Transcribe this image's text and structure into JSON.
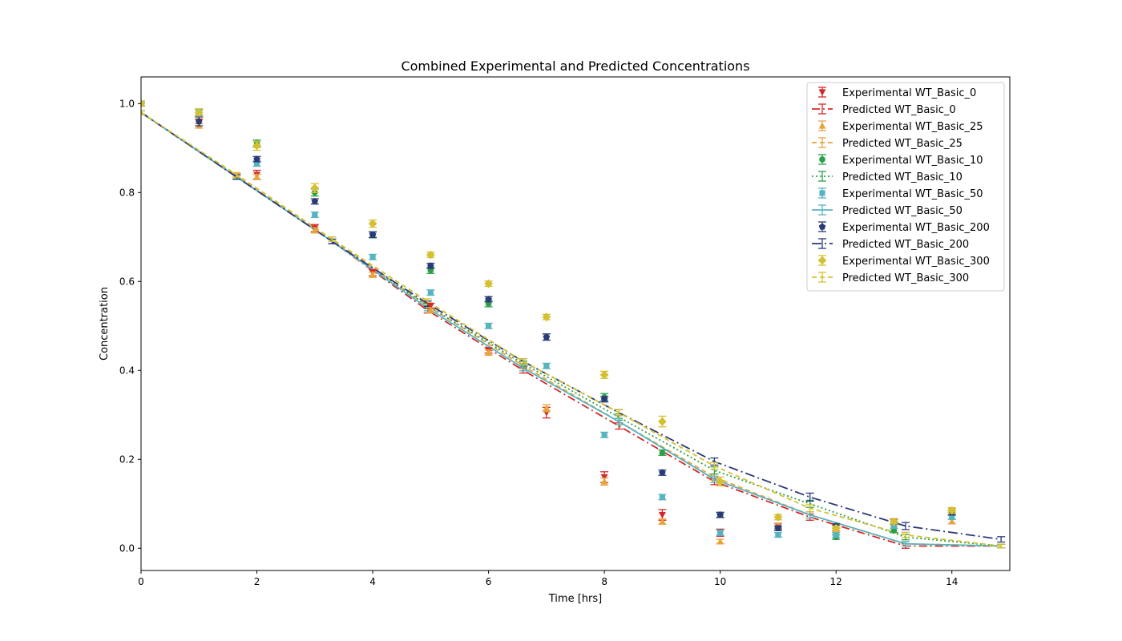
{
  "chart_data": {
    "type": "scatter",
    "title": "Combined Experimental and Predicted Concentrations",
    "xlabel": "Time [hrs]",
    "ylabel": "Concentration",
    "xlim": [
      0,
      15
    ],
    "ylim": [
      -0.05,
      1.06
    ],
    "xticks": [
      "0",
      "2",
      "4",
      "6",
      "8",
      "10",
      "12",
      "14"
    ],
    "yticks": [
      "0.0",
      "0.2",
      "0.4",
      "0.6",
      "0.8",
      "1.0"
    ],
    "legend_position": "upper right",
    "grid": false,
    "experimental_x": [
      0,
      1,
      2,
      3,
      4,
      5,
      6,
      7,
      8,
      9,
      10,
      11,
      12,
      13,
      14
    ],
    "predicted_x_all": [
      0,
      1.65,
      3.3,
      4.95,
      6.6,
      8.25,
      9.9,
      11.55,
      13.2,
      14.85
    ],
    "series": [
      {
        "name": "Experimental WT_Basic_0",
        "kind": "experimental",
        "color": "#d62728",
        "marker": "triangle-down",
        "y": [
          1.0,
          0.96,
          0.84,
          0.72,
          0.62,
          0.545,
          0.445,
          0.305,
          0.16,
          0.075,
          0.035,
          0.05,
          0.045,
          0.06,
          0.085
        ],
        "err": [
          0.005,
          0.005,
          0.01,
          0.008,
          0.007,
          0.006,
          0.006,
          0.012,
          0.012,
          0.012,
          0.008,
          0.006,
          0.006,
          0.006,
          0.006
        ]
      },
      {
        "name": "Predicted WT_Basic_0",
        "kind": "predicted",
        "color": "#d62728",
        "dash": "10,4,2,4",
        "x": [
          0,
          1.65,
          3.3,
          4.95,
          6.6,
          8.25,
          9.9,
          11.55,
          13.2,
          14.85
        ],
        "y": [
          0.98,
          0.835,
          0.69,
          0.535,
          0.4,
          0.275,
          0.15,
          0.07,
          0.005,
          0.005
        ],
        "err": [
          0.004,
          0.005,
          0.005,
          0.006,
          0.006,
          0.007,
          0.007,
          0.007,
          0.005,
          0.004
        ]
      },
      {
        "name": "Experimental WT_Basic_25",
        "kind": "experimental",
        "color": "#e8a33d",
        "marker": "triangle-up",
        "y": [
          1.0,
          0.95,
          0.835,
          0.715,
          0.615,
          0.535,
          0.44,
          0.315,
          0.15,
          0.06,
          0.015,
          0.05,
          0.04,
          0.055,
          0.06
        ],
        "err": [
          0.005,
          0.005,
          0.006,
          0.006,
          0.006,
          0.006,
          0.006,
          0.008,
          0.008,
          0.006,
          0.005,
          0.005,
          0.005,
          0.005,
          0.005
        ]
      },
      {
        "name": "Predicted WT_Basic_25",
        "kind": "predicted",
        "color": "#e8a33d",
        "dash": "6,4",
        "x": [
          0,
          1.65,
          3.3,
          4.95,
          6.6,
          8.25,
          9.9,
          11.55,
          13.2,
          14.85
        ],
        "y": [
          0.98,
          0.838,
          0.695,
          0.545,
          0.41,
          0.285,
          0.16,
          0.075,
          0.01,
          0.005
        ],
        "err": [
          0.004,
          0.005,
          0.005,
          0.006,
          0.006,
          0.007,
          0.007,
          0.007,
          0.005,
          0.004
        ]
      },
      {
        "name": "Experimental WT_Basic_10",
        "kind": "experimental",
        "color": "#2ca048",
        "marker": "circle",
        "y": [
          1.0,
          0.98,
          0.91,
          0.8,
          0.705,
          0.625,
          0.55,
          0.475,
          0.34,
          0.215,
          0.075,
          0.045,
          0.025,
          0.04,
          0.08
        ],
        "err": [
          0.005,
          0.008,
          0.008,
          0.008,
          0.007,
          0.007,
          0.007,
          0.007,
          0.008,
          0.006,
          0.005,
          0.005,
          0.005,
          0.005,
          0.006
        ]
      },
      {
        "name": "Predicted WT_Basic_10",
        "kind": "predicted",
        "color": "#2ca048",
        "dash": "2,3",
        "x": [
          0,
          1.65,
          3.3,
          4.95,
          6.6,
          8.25,
          9.9,
          11.55,
          13.2,
          14.85
        ],
        "y": [
          0.98,
          0.835,
          0.69,
          0.545,
          0.415,
          0.295,
          0.175,
          0.1,
          0.025,
          0.005
        ],
        "err": [
          0.004,
          0.005,
          0.005,
          0.006,
          0.006,
          0.007,
          0.008,
          0.008,
          0.006,
          0.004
        ]
      },
      {
        "name": "Experimental WT_Basic_50",
        "kind": "experimental",
        "color": "#56b4c0",
        "marker": "square",
        "y": [
          1.0,
          0.98,
          0.865,
          0.75,
          0.655,
          0.575,
          0.5,
          0.41,
          0.255,
          0.115,
          0.035,
          0.03,
          0.03,
          0.05,
          0.07
        ],
        "err": [
          0.005,
          0.006,
          0.006,
          0.006,
          0.006,
          0.006,
          0.006,
          0.006,
          0.006,
          0.006,
          0.006,
          0.005,
          0.005,
          0.005,
          0.005
        ]
      },
      {
        "name": "Predicted WT_Basic_50",
        "kind": "predicted",
        "color": "#56b4c0",
        "dash": "",
        "x": [
          0,
          1.65,
          3.3,
          4.95,
          6.6,
          8.25,
          9.9,
          11.55,
          13.2,
          14.85
        ],
        "y": [
          0.98,
          0.835,
          0.69,
          0.54,
          0.405,
          0.285,
          0.155,
          0.075,
          0.01,
          0.005
        ],
        "err": [
          0.004,
          0.005,
          0.005,
          0.006,
          0.006,
          0.007,
          0.007,
          0.007,
          0.005,
          0.004
        ]
      },
      {
        "name": "Experimental WT_Basic_200",
        "kind": "experimental",
        "color": "#2b3a78",
        "marker": "pentagon",
        "y": [
          1.0,
          0.96,
          0.875,
          0.78,
          0.705,
          0.635,
          0.56,
          0.475,
          0.335,
          0.17,
          0.075,
          0.045,
          0.05,
          0.06,
          0.08
        ],
        "err": [
          0.005,
          0.01,
          0.006,
          0.006,
          0.006,
          0.006,
          0.006,
          0.007,
          0.006,
          0.006,
          0.006,
          0.005,
          0.005,
          0.005,
          0.005
        ]
      },
      {
        "name": "Predicted WT_Basic_200",
        "kind": "predicted",
        "color": "#2b3a78",
        "dash": "12,4,2,4",
        "x": [
          0,
          1.65,
          3.3,
          4.95,
          6.6,
          8.25,
          9.9,
          11.55,
          13.2,
          14.85
        ],
        "y": [
          0.98,
          0.835,
          0.69,
          0.55,
          0.42,
          0.305,
          0.195,
          0.115,
          0.05,
          0.02
        ],
        "err": [
          0.004,
          0.005,
          0.005,
          0.006,
          0.006,
          0.007,
          0.008,
          0.009,
          0.008,
          0.006
        ]
      },
      {
        "name": "Experimental WT_Basic_300",
        "kind": "experimental",
        "color": "#d4c030",
        "marker": "diamond",
        "y": [
          1.0,
          0.98,
          0.905,
          0.81,
          0.73,
          0.66,
          0.595,
          0.52,
          0.39,
          0.285,
          0.15,
          0.07,
          0.045,
          0.06,
          0.085
        ],
        "err": [
          0.005,
          0.008,
          0.01,
          0.01,
          0.008,
          0.006,
          0.006,
          0.006,
          0.008,
          0.012,
          0.01,
          0.006,
          0.005,
          0.005,
          0.006
        ]
      },
      {
        "name": "Predicted WT_Basic_300",
        "kind": "predicted",
        "color": "#d4c030",
        "dash": "6,4",
        "x": [
          0,
          1.65,
          3.3,
          4.95,
          6.6,
          8.25,
          9.9,
          11.55,
          13.2,
          14.85
        ],
        "y": [
          0.98,
          0.84,
          0.695,
          0.555,
          0.42,
          0.305,
          0.185,
          0.09,
          0.03,
          0.005
        ],
        "err": [
          0.004,
          0.005,
          0.005,
          0.006,
          0.006,
          0.007,
          0.008,
          0.008,
          0.006,
          0.004
        ]
      }
    ]
  }
}
